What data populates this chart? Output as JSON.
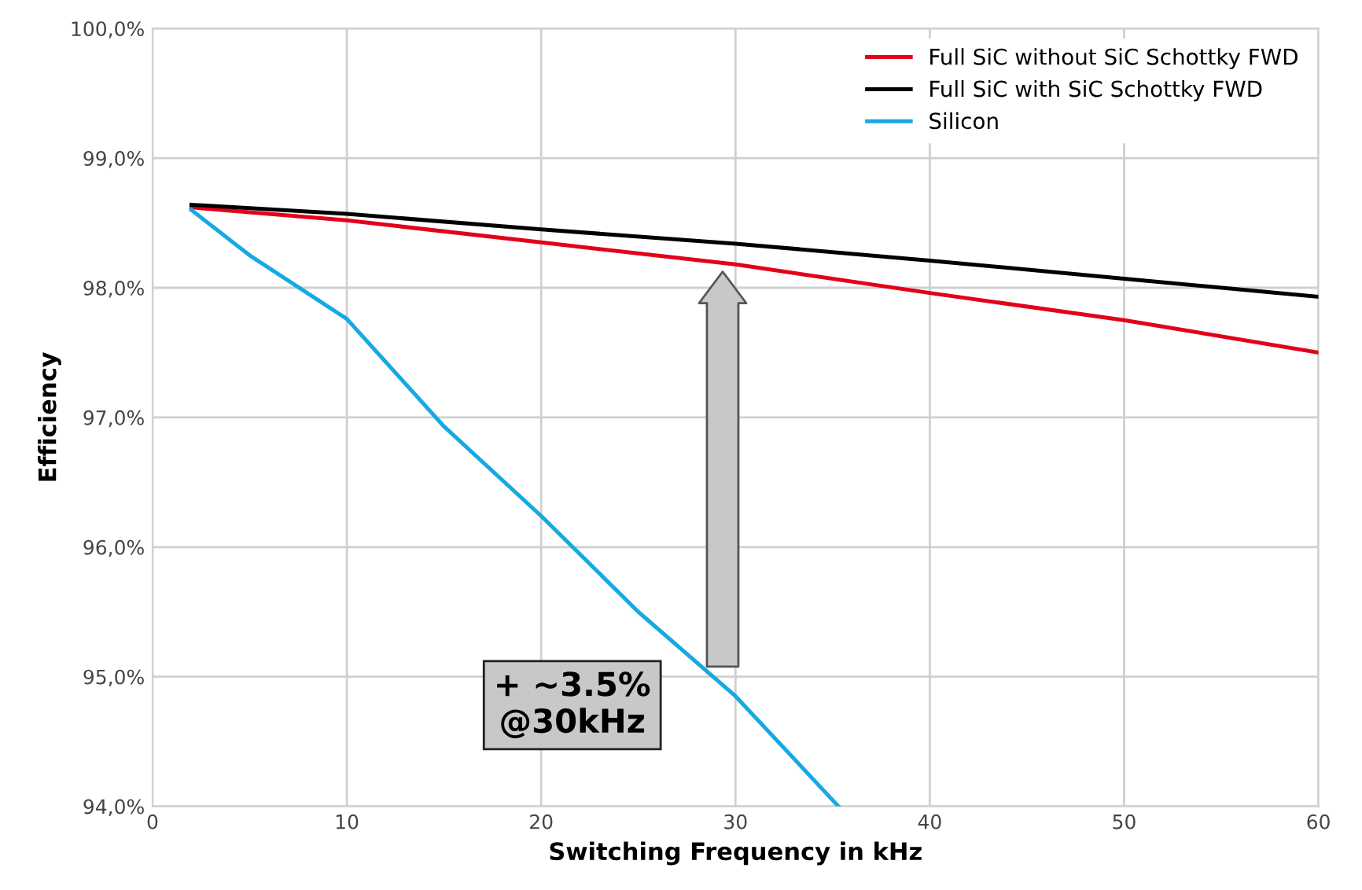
{
  "chart_data": {
    "type": "line",
    "xlabel": "Switching Frequency in kHz",
    "ylabel": "Efficiency",
    "xlim": [
      0,
      60
    ],
    "xticks": [
      0,
      10,
      20,
      30,
      40,
      50,
      60
    ],
    "ylim": [
      94,
      100
    ],
    "yticks": [
      {
        "value": 94,
        "label": "94,0%"
      },
      {
        "value": 95,
        "label": "95,0%"
      },
      {
        "value": 96,
        "label": "96,0%"
      },
      {
        "value": 97,
        "label": "97,0%"
      },
      {
        "value": 98,
        "label": "98,0%"
      },
      {
        "value": 99,
        "label": "99,0%"
      },
      {
        "value": 100,
        "label": "100,0%"
      }
    ],
    "grid": true,
    "legend": "top right",
    "marker": "none",
    "line_style": "solid",
    "series": [
      {
        "name": "Full SiC without SiC Schottky FWD",
        "color": "#e3001b",
        "x": [
          2,
          10,
          20,
          30,
          40,
          50,
          60
        ],
        "values": [
          98.62,
          98.52,
          98.35,
          98.18,
          97.96,
          97.75,
          97.5
        ]
      },
      {
        "name": "Full SiC with SiC Schottky FWD",
        "color": "#000000",
        "x": [
          2,
          10,
          20,
          30,
          40,
          50,
          60
        ],
        "values": [
          98.64,
          98.57,
          98.45,
          98.34,
          98.21,
          98.07,
          97.93
        ]
      },
      {
        "name": "Silicon",
        "color": "#17a9e1",
        "x": [
          2,
          5,
          10,
          15,
          20,
          25,
          30,
          35.3
        ],
        "values": [
          98.6,
          98.25,
          97.76,
          96.93,
          96.24,
          95.5,
          94.85,
          94.0
        ]
      }
    ],
    "annotations": [
      "+ ~3.5%\n@30kHz"
    ]
  }
}
